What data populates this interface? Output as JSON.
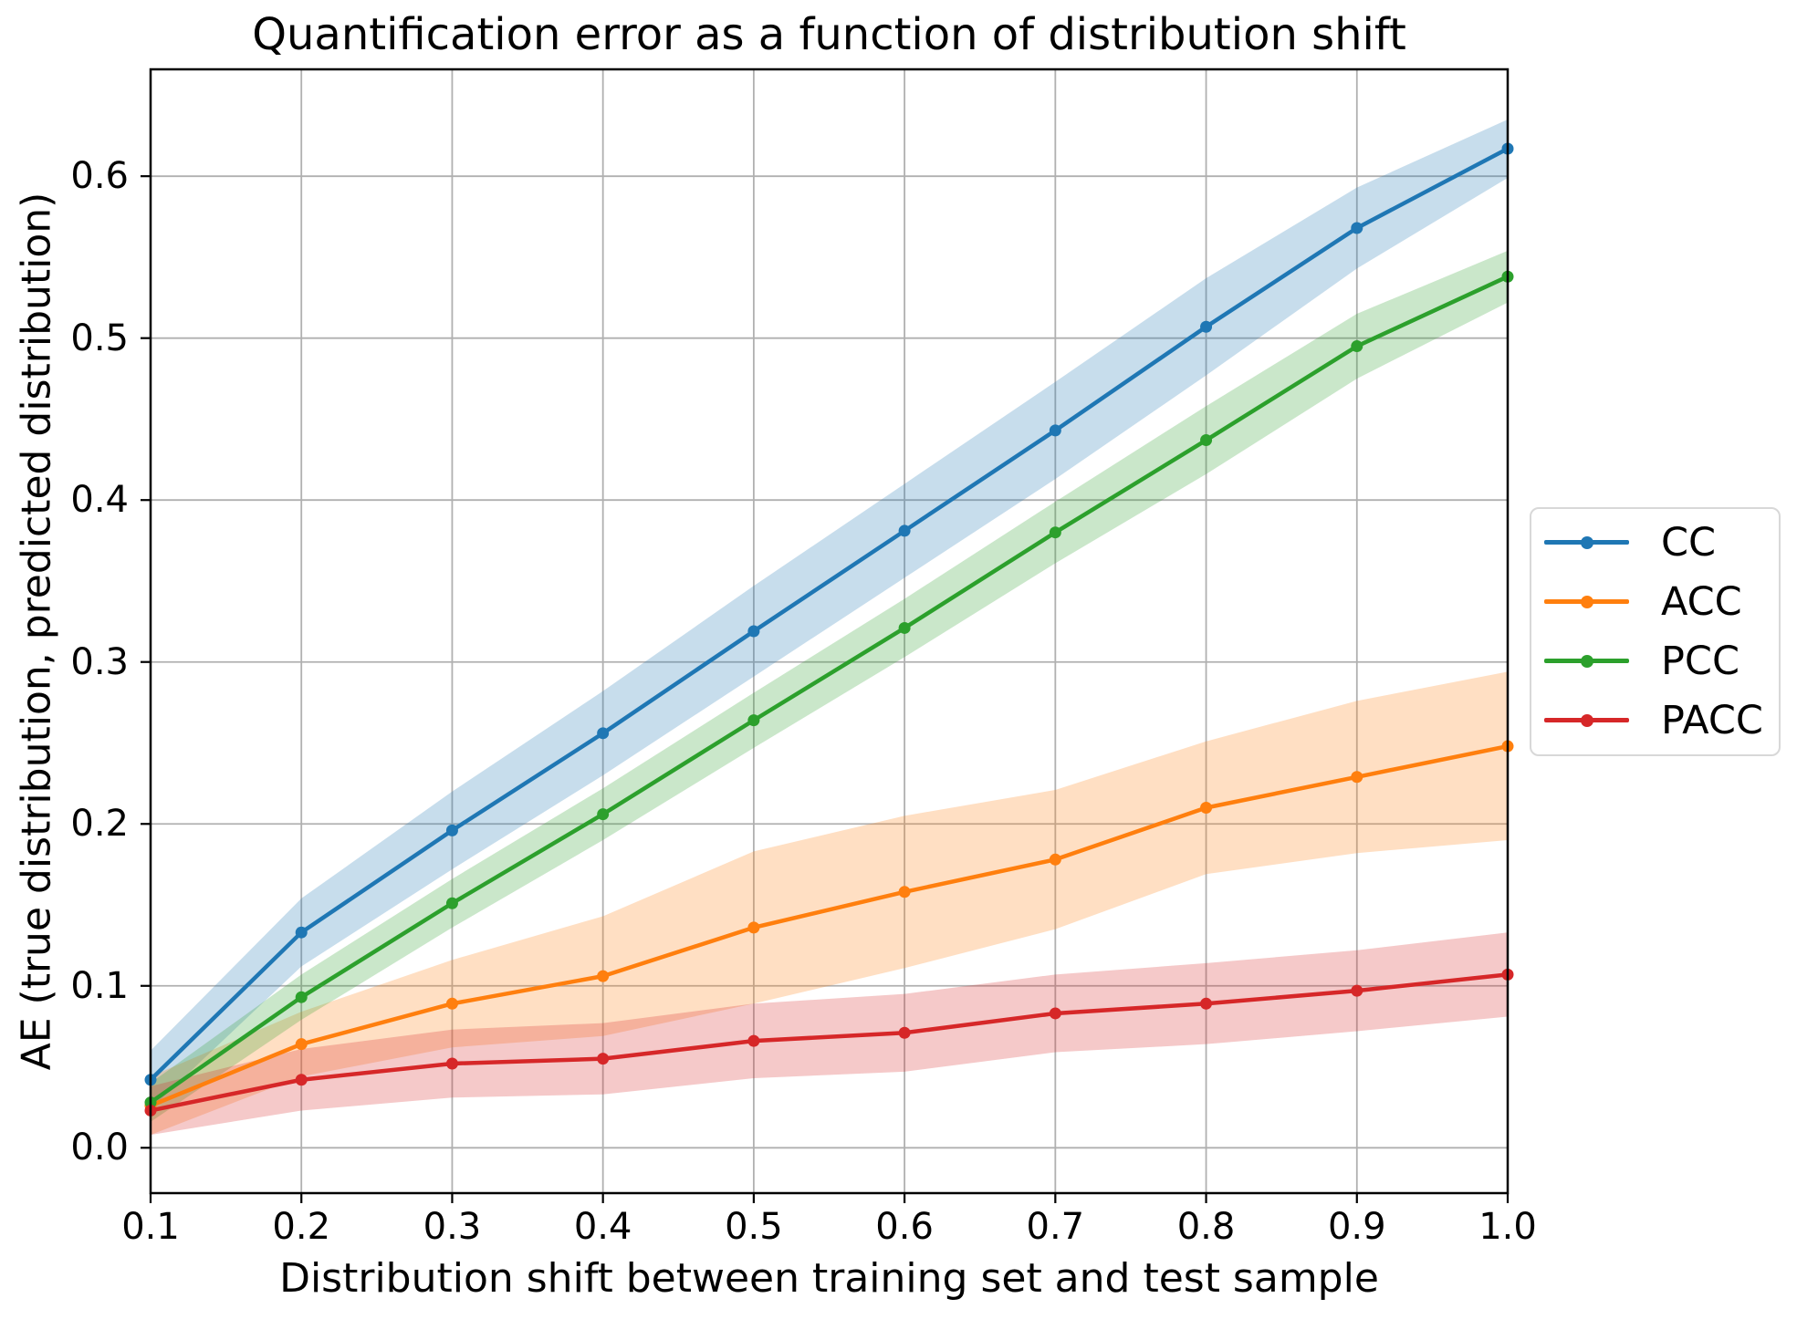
{
  "chart_data": {
    "type": "line",
    "title": "Quantification error as a function of distribution shift",
    "xlabel": "Distribution shift between training set and test sample",
    "ylabel": "AE (true distribution, predicted distribution)",
    "x": [
      0.1,
      0.2,
      0.3,
      0.4,
      0.5,
      0.6,
      0.7,
      0.8,
      0.9,
      1.0
    ],
    "xlim": [
      0.1,
      1.0
    ],
    "ylim": [
      -0.028,
      0.666
    ],
    "xtick_labels": [
      "0.1",
      "0.2",
      "0.3",
      "0.4",
      "0.5",
      "0.6",
      "0.7",
      "0.8",
      "0.9",
      "1.0"
    ],
    "xtick_values": [
      0.1,
      0.2,
      0.3,
      0.4,
      0.5,
      0.6,
      0.7,
      0.8,
      0.9,
      1.0
    ],
    "ytick_labels": [
      "0.0",
      "0.1",
      "0.2",
      "0.3",
      "0.4",
      "0.5",
      "0.6"
    ],
    "ytick_values": [
      0.0,
      0.1,
      0.2,
      0.3,
      0.4,
      0.5,
      0.6
    ],
    "grid": true,
    "legend_position": "outside-right-center",
    "series": [
      {
        "name": "CC",
        "color": "#1f77b4",
        "values": [
          0.042,
          0.133,
          0.196,
          0.256,
          0.319,
          0.381,
          0.443,
          0.507,
          0.568,
          0.617
        ],
        "band_lower": [
          0.024,
          0.112,
          0.172,
          0.23,
          0.291,
          0.352,
          0.413,
          0.477,
          0.543,
          0.599
        ],
        "band_upper": [
          0.06,
          0.154,
          0.22,
          0.282,
          0.347,
          0.41,
          0.473,
          0.537,
          0.593,
          0.635
        ]
      },
      {
        "name": "ACC",
        "color": "#ff7f0e",
        "values": [
          0.026,
          0.064,
          0.089,
          0.106,
          0.136,
          0.158,
          0.178,
          0.21,
          0.229,
          0.248
        ],
        "band_lower": [
          0.008,
          0.044,
          0.062,
          0.069,
          0.089,
          0.111,
          0.135,
          0.169,
          0.182,
          0.19
        ],
        "band_upper": [
          0.044,
          0.084,
          0.116,
          0.143,
          0.183,
          0.205,
          0.221,
          0.251,
          0.276,
          0.294
        ]
      },
      {
        "name": "PCC",
        "color": "#2ca02c",
        "values": [
          0.028,
          0.093,
          0.151,
          0.206,
          0.264,
          0.321,
          0.38,
          0.437,
          0.495,
          0.538
        ],
        "band_lower": [
          0.016,
          0.079,
          0.136,
          0.19,
          0.247,
          0.303,
          0.361,
          0.416,
          0.475,
          0.522
        ],
        "band_upper": [
          0.04,
          0.107,
          0.166,
          0.222,
          0.281,
          0.339,
          0.399,
          0.458,
          0.515,
          0.554
        ]
      },
      {
        "name": "PACC",
        "color": "#d62728",
        "values": [
          0.023,
          0.042,
          0.052,
          0.055,
          0.066,
          0.071,
          0.083,
          0.089,
          0.097,
          0.107
        ],
        "band_lower": [
          0.008,
          0.023,
          0.031,
          0.033,
          0.043,
          0.047,
          0.059,
          0.064,
          0.072,
          0.081
        ],
        "band_upper": [
          0.038,
          0.061,
          0.073,
          0.077,
          0.089,
          0.095,
          0.107,
          0.114,
          0.122,
          0.133
        ]
      }
    ]
  },
  "legend": {
    "entries": [
      {
        "label": "CC",
        "color": "#1f77b4"
      },
      {
        "label": "ACC",
        "color": "#ff7f0e"
      },
      {
        "label": "PCC",
        "color": "#2ca02c"
      },
      {
        "label": "PACC",
        "color": "#d62728"
      }
    ]
  },
  "colors": {
    "background": "#ffffff",
    "grid": "#b0b0b0",
    "spine": "#000000",
    "text": "#000000",
    "legend_border": "#d8d8d8",
    "band_alpha": 0.25
  }
}
